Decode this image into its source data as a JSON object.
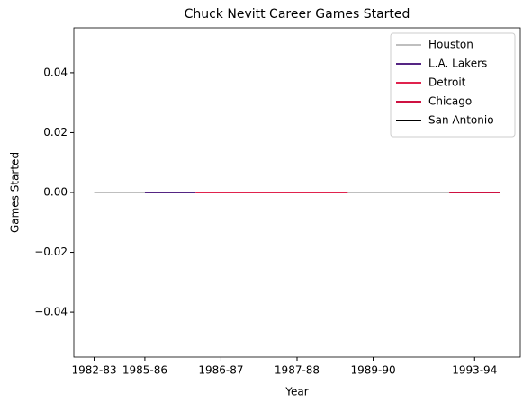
{
  "chart_data": {
    "type": "line",
    "title": "Chuck Nevitt Career Games Started",
    "xlabel": "Year",
    "ylabel": "Games Started",
    "xlim": [
      -0.4,
      8.4
    ],
    "xticks": [
      {
        "value": 0,
        "label": "1982-83"
      },
      {
        "value": 1,
        "label": "1985-86"
      },
      {
        "value": 2.5,
        "label": "1986-87"
      },
      {
        "value": 4,
        "label": "1987-88"
      },
      {
        "value": 5.5,
        "label": "1989-90"
      },
      {
        "value": 7.5,
        "label": "1993-94"
      }
    ],
    "x": [
      0,
      1,
      2,
      3,
      4,
      5,
      6,
      7,
      8
    ],
    "ylim": [
      -0.055,
      0.055
    ],
    "yticks": [
      {
        "value": -0.04,
        "label": "−0.04"
      },
      {
        "value": -0.02,
        "label": "−0.02"
      },
      {
        "value": 0,
        "label": "0.00"
      },
      {
        "value": 0.02,
        "label": "0.02"
      },
      {
        "value": 0.04,
        "label": "0.04"
      }
    ],
    "legend": "upper right",
    "series": [
      {
        "name": "Houston",
        "color": "#bfbfbf",
        "values": [
          0,
          0,
          null,
          null,
          null,
          0,
          0,
          0,
          null
        ]
      },
      {
        "name": "L.A. Lakers",
        "color": "#552583",
        "values": [
          null,
          0,
          0,
          null,
          null,
          null,
          null,
          null,
          null
        ]
      },
      {
        "name": "Detroit",
        "color": "#e0234e",
        "values": [
          null,
          null,
          0,
          0,
          0,
          0,
          null,
          null,
          null
        ]
      },
      {
        "name": "Chicago",
        "color": "#ce1141",
        "values": [
          null,
          null,
          null,
          null,
          null,
          null,
          null,
          0,
          0
        ]
      },
      {
        "name": "San Antonio",
        "color": "#000000",
        "values": [
          null,
          null,
          null,
          null,
          null,
          null,
          null,
          null,
          null
        ]
      }
    ]
  }
}
